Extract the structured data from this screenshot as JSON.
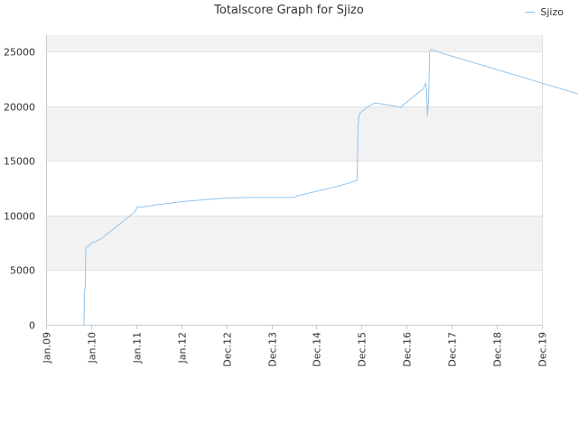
{
  "chart_data": {
    "type": "line",
    "title": "Totalscore Graph for Sjizo",
    "legend": {
      "position": "top-right",
      "entries": [
        "Sjizo"
      ]
    },
    "xlabel": "",
    "ylabel": "",
    "x_ticks": [
      "Jan.09",
      "Jan.10",
      "Jan.11",
      "Jan.12",
      "Dec.12",
      "Dec.13",
      "Dec.14",
      "Dec.15",
      "Dec.16",
      "Dec.17",
      "Dec.18",
      "Dec.19"
    ],
    "x_range": [
      "Jan.09",
      "Dec.19"
    ],
    "y_ticks": [
      0,
      5000,
      10000,
      15000,
      20000,
      25000
    ],
    "ylim": [
      0,
      26500
    ],
    "grid": true,
    "series": [
      {
        "name": "Sjizo",
        "color": "#90c4ee",
        "points": [
          [
            "2009-11-05",
            0
          ],
          [
            "2009-11-06",
            2900
          ],
          [
            "2009-11-08",
            3100
          ],
          [
            "2009-11-12",
            3200
          ],
          [
            "2009-11-15",
            3700
          ],
          [
            "2009-11-18",
            6700
          ],
          [
            "2009-11-22",
            7100
          ],
          [
            "2009-11-28",
            7200
          ],
          [
            "2009-12-15",
            7200
          ],
          [
            "2010-01-05",
            7500
          ],
          [
            "2010-02-01",
            7600
          ],
          [
            "2010-03-15",
            7800
          ],
          [
            "2010-12-20",
            10300
          ],
          [
            "2011-01-02",
            10600
          ],
          [
            "2011-01-05",
            10750
          ],
          [
            "2011-03-01",
            10800
          ],
          [
            "2011-07-01",
            11000
          ],
          [
            "2012-02-01",
            11300
          ],
          [
            "2012-12-01",
            11600
          ],
          [
            "2013-06-01",
            11650
          ],
          [
            "2014-06-01",
            11650
          ],
          [
            "2014-07-01",
            11800
          ],
          [
            "2015-06-01",
            12700
          ],
          [
            "2015-10-25",
            13200
          ],
          [
            "2015-10-28",
            14500
          ],
          [
            "2015-11-02",
            18000
          ],
          [
            "2015-11-08",
            19000
          ],
          [
            "2015-11-20",
            19400
          ],
          [
            "2016-01-15",
            19900
          ],
          [
            "2016-03-15",
            20300
          ],
          [
            "2016-05-15",
            20200
          ],
          [
            "2016-10-15",
            19900
          ],
          [
            "2016-11-01",
            20100
          ],
          [
            "2017-04-15",
            21600
          ],
          [
            "2017-05-05",
            22100
          ],
          [
            "2017-05-12",
            21400
          ],
          [
            "2017-05-18",
            19100
          ],
          [
            "2017-05-28",
            20600
          ],
          [
            "2017-06-05",
            25000
          ],
          [
            "2017-06-20",
            25200
          ],
          [
            "2017-08-01",
            25000
          ],
          [
            "2020-11-25",
            20900
          ]
        ]
      }
    ]
  }
}
